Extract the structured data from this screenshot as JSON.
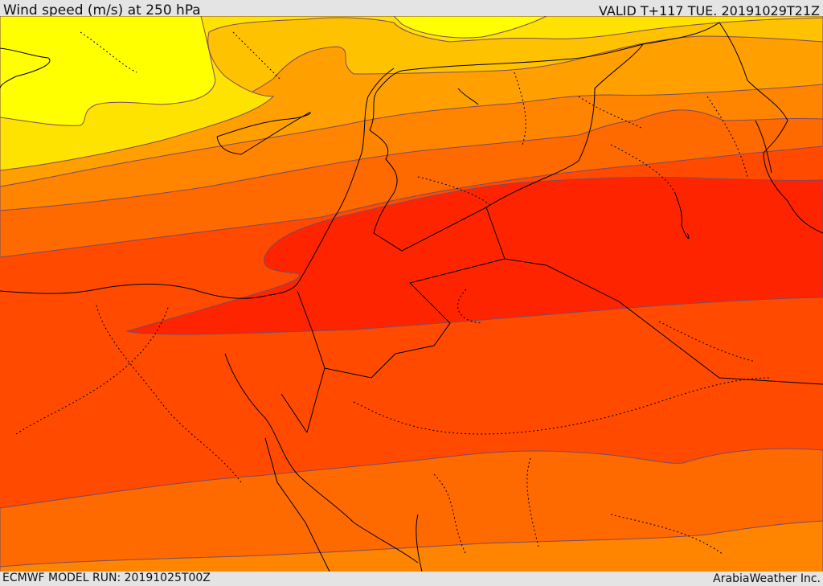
{
  "header": {
    "title": "Wind speed (m/s) at 250 hPa",
    "valid": "VALID T+117 TUE. 20191029T21Z"
  },
  "footer": {
    "model_run": "ECMWF MODEL RUN: 20191025T00Z",
    "credit": "ArabiaWeather Inc."
  },
  "map": {
    "field": "wind speed at 250 hPa",
    "colors": {
      "band_1": "#ffff00",
      "band_2": "#ffe300",
      "band_3": "#ffc200",
      "band_4": "#ffa000",
      "band_5": "#ff8400",
      "band_6": "#ff6a00",
      "band_7": "#ff4a00",
      "band_8": "#ff2400",
      "contour": "#7a4a66",
      "border": "#000000"
    }
  }
}
